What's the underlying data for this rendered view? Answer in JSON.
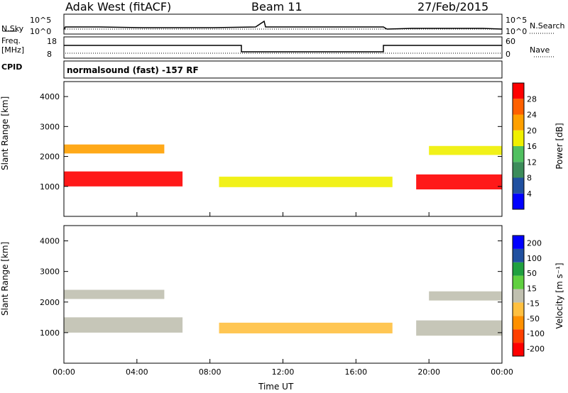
{
  "header": {
    "title": "Adak West (fitACF)",
    "beam": "Beam 11",
    "date": "27/Feb/2015"
  },
  "noise_panel": {
    "left_label": "N.Sky",
    "right_label": "N.Search",
    "left_ticks": [
      "10^5",
      "10^0"
    ],
    "right_ticks": [
      "10^5",
      "10^0"
    ]
  },
  "freq_panel": {
    "left_label_line1": "Freq.",
    "left_label_line2": "[MHz]",
    "left_ticks": [
      "18",
      "8"
    ],
    "right_label": "Nave",
    "right_ticks": [
      "60",
      "0"
    ]
  },
  "cpid": {
    "label": "CPID",
    "text": "normalsound (fast) -157 RF"
  },
  "colors": {
    "power_scale": [
      "#0000ff",
      "#2050a0",
      "#3c8c5a",
      "#50c060",
      "#f0f000",
      "#ffa000",
      "#ff6000",
      "#ff0000"
    ],
    "velocity_scale": [
      "#ff0000",
      "#ff4000",
      "#ff9000",
      "#ffc040",
      "#c0c0b0",
      "#60d040",
      "#20a040",
      "#2050a0",
      "#0000ff"
    ]
  },
  "chart_data": [
    {
      "type": "heatmap",
      "name": "power",
      "ylabel": "Slant Range [km]",
      "yticks": [
        "1000",
        "2000",
        "3000",
        "4000"
      ],
      "ylim": [
        0,
        4500
      ],
      "xlabel": "Time UT",
      "xticks": [
        "00:00",
        "04:00",
        "08:00",
        "12:00",
        "16:00",
        "20:00",
        "00:00"
      ],
      "xlim": [
        0,
        24
      ],
      "colorbar": {
        "label": "Power [dB]",
        "ticks": [
          "4",
          "8",
          "12",
          "16",
          "20",
          "24",
          "28"
        ],
        "range": [
          0,
          32
        ]
      },
      "bands": [
        {
          "t0": 0,
          "t1": 6.5,
          "range_center": 1250,
          "range_width": 500,
          "value": 28
        },
        {
          "t0": 0,
          "t1": 5.5,
          "range_center": 2250,
          "range_width": 300,
          "value": 20
        },
        {
          "t0": 8.5,
          "t1": 18.0,
          "range_center": 1150,
          "range_width": 350,
          "value": 18
        },
        {
          "t0": 19.3,
          "t1": 24,
          "range_center": 1150,
          "range_width": 500,
          "value": 28
        },
        {
          "t0": 20.0,
          "t1": 24,
          "range_center": 2200,
          "range_width": 300,
          "value": 18
        }
      ]
    },
    {
      "type": "heatmap",
      "name": "velocity",
      "ylabel": "Slant Range [km]",
      "yticks": [
        "1000",
        "2000",
        "3000",
        "4000"
      ],
      "ylim": [
        0,
        4500
      ],
      "xlabel": "Time UT",
      "xticks": [
        "00:00",
        "04:00",
        "08:00",
        "12:00",
        "16:00",
        "20:00",
        "00:00"
      ],
      "xlim": [
        0,
        24
      ],
      "colorbar": {
        "label": "Velocity [m s⁻¹]",
        "ticks": [
          "200",
          "100",
          "50",
          "15",
          "-15",
          "-50",
          "-100",
          "-200"
        ],
        "range": [
          -250,
          250
        ]
      },
      "bands": [
        {
          "t0": 0,
          "t1": 6.5,
          "range_center": 1250,
          "range_width": 500,
          "value": 0
        },
        {
          "t0": 0,
          "t1": 5.5,
          "range_center": 2250,
          "range_width": 300,
          "value": 0
        },
        {
          "t0": 8.5,
          "t1": 18.0,
          "range_center": 1150,
          "range_width": 350,
          "value": -40
        },
        {
          "t0": 19.3,
          "t1": 24,
          "range_center": 1150,
          "range_width": 500,
          "value": 0
        },
        {
          "t0": 20.0,
          "t1": 24,
          "range_center": 2200,
          "range_width": 300,
          "value": 0
        }
      ]
    }
  ]
}
